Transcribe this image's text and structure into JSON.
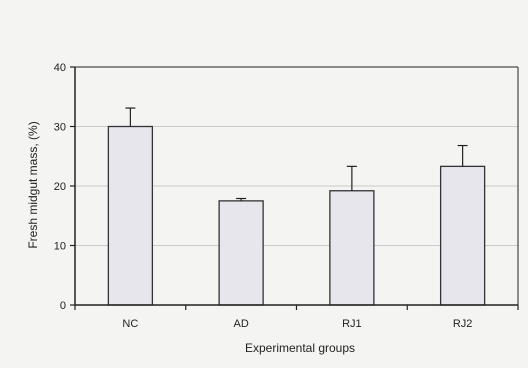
{
  "chart_data": {
    "type": "bar",
    "categories": [
      "NC",
      "AD",
      "RJ1",
      "RJ2"
    ],
    "values": [
      30,
      17.5,
      19.2,
      23.3
    ],
    "errors": [
      3.1,
      0.4,
      4.1,
      3.5
    ],
    "xlabel": "Experimental groups",
    "ylabel": "Fresh midgut mass, (%)",
    "ylim": [
      0,
      40
    ],
    "yticks": [
      0,
      10,
      20,
      30,
      40
    ],
    "grid": true,
    "bar_fill": "#e6e6ec",
    "bar_stroke": "#333333",
    "grid_color": "#bdbdbd"
  }
}
